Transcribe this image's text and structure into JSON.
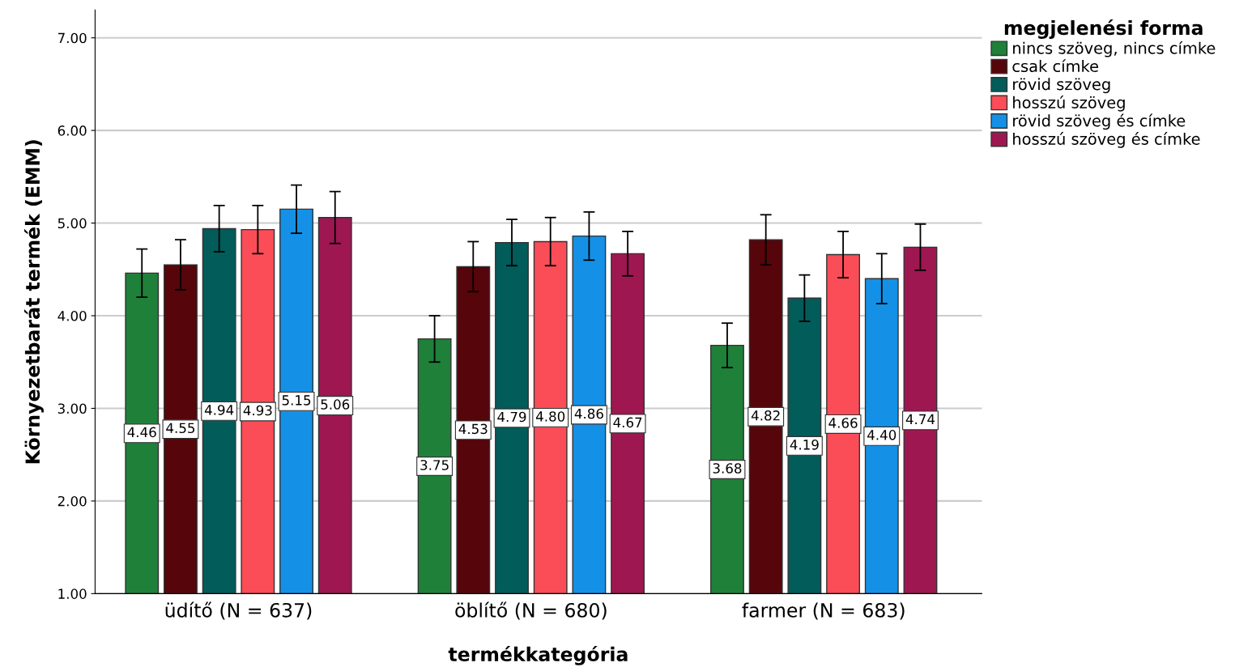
{
  "chart_data": {
    "type": "bar",
    "xlabel": "termékkategória",
    "ylabel": "Környezetbarát termék (EMM)",
    "legend_title": "megjelenési forma",
    "categories": [
      "üdítő (N = 637)",
      "öblítő (N = 680)",
      "farmer (N = 683)"
    ],
    "series": [
      {
        "name": "nincs szöveg, nincs címke",
        "color": "#1f8039",
        "values": [
          4.46,
          3.75,
          3.68
        ],
        "errors": [
          0.26,
          0.25,
          0.24
        ],
        "value_labels": [
          "4.46",
          "3.75",
          "3.68"
        ]
      },
      {
        "name": "csak címke",
        "color": "#56050b",
        "values": [
          4.55,
          4.53,
          4.82
        ],
        "errors": [
          0.27,
          0.27,
          0.27
        ],
        "value_labels": [
          "4.55",
          "4.53",
          "4.82"
        ]
      },
      {
        "name": "rövid szöveg",
        "color": "#025c5a",
        "values": [
          4.94,
          4.79,
          4.19
        ],
        "errors": [
          0.25,
          0.25,
          0.25
        ],
        "value_labels": [
          "4.94",
          "4.79",
          "4.19"
        ]
      },
      {
        "name": "hosszú szöveg",
        "color": "#fa4d58",
        "values": [
          4.93,
          4.8,
          4.66
        ],
        "errors": [
          0.26,
          0.26,
          0.25
        ],
        "value_labels": [
          "4.93",
          "4.80",
          "4.66"
        ]
      },
      {
        "name": "rövid szöveg és címke",
        "color": "#1491e6",
        "values": [
          5.15,
          4.86,
          4.4
        ],
        "errors": [
          0.26,
          0.26,
          0.27
        ],
        "value_labels": [
          "5.15",
          "4.86",
          "4.40"
        ]
      },
      {
        "name": "hosszú szöveg és címke",
        "color": "#9e1751",
        "values": [
          5.06,
          4.67,
          4.74
        ],
        "errors": [
          0.28,
          0.24,
          0.25
        ],
        "value_labels": [
          "5.06",
          "4.67",
          "4.74"
        ]
      }
    ],
    "ylim": [
      1,
      7.3
    ],
    "yticks": [
      {
        "value": 1,
        "label": "1.00"
      },
      {
        "value": 2,
        "label": "2.00"
      },
      {
        "value": 3,
        "label": "3.00"
      },
      {
        "value": 4,
        "label": "4.00"
      },
      {
        "value": 5,
        "label": "5.00"
      },
      {
        "value": 6,
        "label": "6.00"
      },
      {
        "value": 7,
        "label": "7.00"
      }
    ],
    "grid": "y",
    "legend": "top right"
  }
}
